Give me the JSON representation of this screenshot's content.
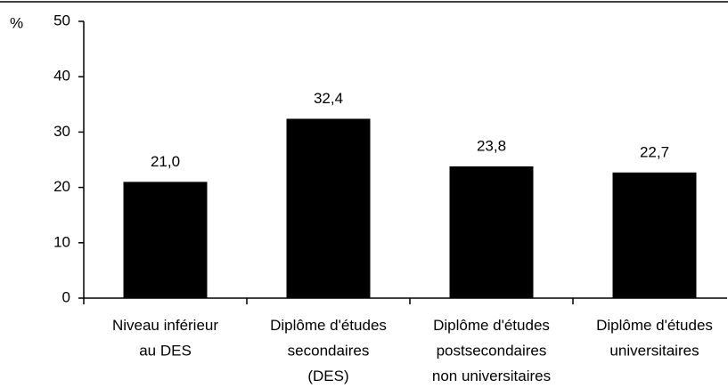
{
  "chart_data": {
    "type": "bar",
    "y_label": "%",
    "categories": [
      "Niveau inférieur\nau DES",
      "Diplôme d'études\nsecondaires\n(DES)",
      "Diplôme d'études\npostsecondaires\nnon universitaires",
      "Diplôme d'études\nuniversitaires"
    ],
    "values": [
      21.0,
      32.4,
      23.8,
      22.7
    ],
    "value_labels": [
      "21,0",
      "32,4",
      "23,8",
      "22,7"
    ],
    "color": "#000000",
    "ylim": [
      0,
      50
    ],
    "yticks": [
      0,
      10,
      20,
      30,
      40,
      50
    ],
    "grid": false
  }
}
